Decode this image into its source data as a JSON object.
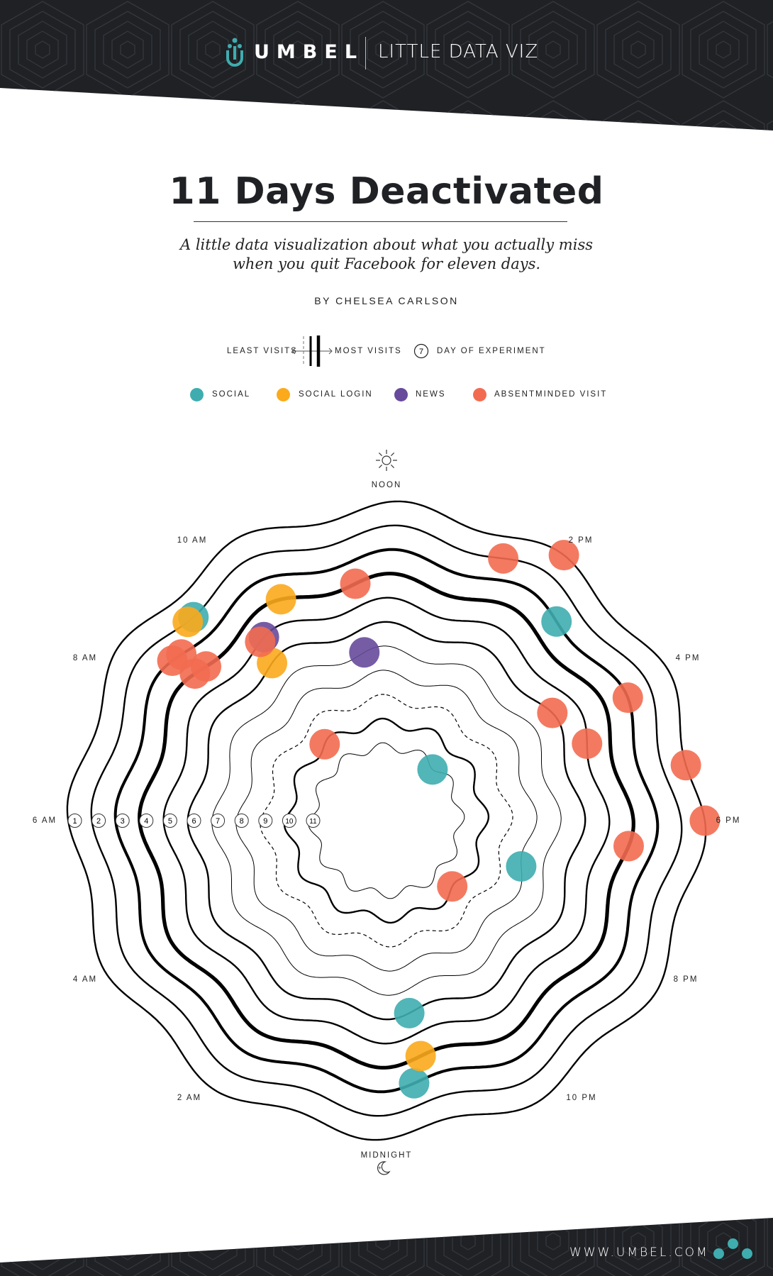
{
  "header": {
    "brand": "UMBEL",
    "section": "LITTLE DATA VIZ",
    "background": "#1f2125",
    "brand_color": "#3fadaf"
  },
  "title": "11 Days Deactivated",
  "subtitle": [
    "A little data visualization about what you actually miss",
    "when you quit Facebook for eleven days."
  ],
  "byline": "BY CHELSEA CARLSON",
  "legend": {
    "least": "LEAST VISITS",
    "most": "MOST VISITS",
    "day_marker": "7",
    "day_label": "DAY OF EXPERIMENT",
    "categories": [
      {
        "label": "SOCIAL",
        "color": "#3fadaf"
      },
      {
        "label": "SOCIAL LOGIN",
        "color": "#fbaa1c"
      },
      {
        "label": "NEWS",
        "color": "#674a9b"
      },
      {
        "label": "ABSENTMINDED VISIT",
        "color": "#f26b50"
      }
    ]
  },
  "chart_data": {
    "type": "scatter",
    "time_labels": [
      "NOON",
      "2 PM",
      "4 PM",
      "6 PM",
      "8 PM",
      "10 PM",
      "MIDNIGHT",
      "2 AM",
      "4 AM",
      "6 AM",
      "8 AM",
      "10 AM"
    ],
    "days": [
      1,
      2,
      3,
      4,
      5,
      6,
      7,
      8,
      9,
      10,
      11
    ],
    "ring_styles": [
      "normal",
      "normal",
      "thick",
      "thickest",
      "normal",
      "normal",
      "thin",
      "thin",
      "dashed",
      "normal",
      "thin"
    ],
    "series": [
      {
        "name": "SOCIAL",
        "color": "#3fadaf",
        "points": [
          {
            "day": 2,
            "hour": 9.1
          },
          {
            "day": 3,
            "hour": 14.7
          },
          {
            "day": 11,
            "hour": 14.8
          },
          {
            "day": 8,
            "hour": 19.25
          },
          {
            "day": 6,
            "hour": 23.55
          },
          {
            "day": 3,
            "hour": 23.6
          }
        ]
      },
      {
        "name": "SOCIAL LOGIN",
        "color": "#fbaa1c",
        "points": [
          {
            "day": 4,
            "hour": 10.3
          },
          {
            "day": 2,
            "hour": 9.0
          },
          {
            "day": 6,
            "hour": 9.6
          },
          {
            "day": 4,
            "hour": 23.45
          }
        ]
      },
      {
        "name": "NEWS",
        "color": "#674a9b",
        "points": [
          {
            "day": 5,
            "hour": 9.75
          },
          {
            "day": 7,
            "hour": 11.5
          }
        ]
      },
      {
        "name": "ABSENTMINDED VISIT",
        "color": "#f26b50",
        "points": [
          {
            "day": 2,
            "hour": 13.6
          },
          {
            "day": 1,
            "hour": 14.25
          },
          {
            "day": 4,
            "hour": 11.5
          },
          {
            "day": 5,
            "hour": 9.65
          },
          {
            "day": 3,
            "hour": 8.6
          },
          {
            "day": 3,
            "hour": 8.45
          },
          {
            "day": 4,
            "hour": 8.7
          },
          {
            "day": 4,
            "hour": 8.5
          },
          {
            "day": 3,
            "hour": 16.2
          },
          {
            "day": 6,
            "hour": 15.8
          },
          {
            "day": 5,
            "hour": 16.6
          },
          {
            "day": 1,
            "hour": 17.3
          },
          {
            "day": 1,
            "hour": 18.0
          },
          {
            "day": 4,
            "hour": 18.4
          },
          {
            "day": 10,
            "hour": 9.4
          },
          {
            "day": 10,
            "hour": 21.0
          }
        ]
      }
    ]
  },
  "footer": {
    "url": "WWW.UMBEL.COM"
  }
}
